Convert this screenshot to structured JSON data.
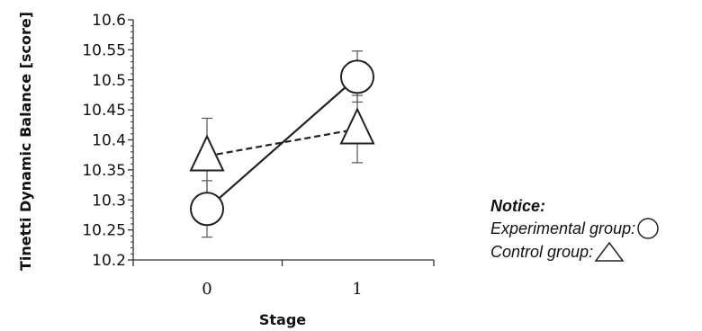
{
  "chart_data": {
    "type": "line",
    "title": "",
    "xlabel": "Stage",
    "ylabel": "Tinetti Dynamic Balance [score]",
    "categories": [
      "0",
      "1"
    ],
    "ylim": [
      10.2,
      10.6
    ],
    "yticks": [
      "10.6",
      "10.55",
      "10.5",
      "10.45",
      "10.4",
      "10.35",
      "10.3",
      "10.25",
      "10.2"
    ],
    "ytick_values": [
      10.6,
      10.55,
      10.5,
      10.45,
      10.4,
      10.35,
      10.3,
      10.25,
      10.2
    ],
    "grid": false,
    "legend_placement": "right",
    "series": [
      {
        "name": "Experimental group",
        "marker": "circle",
        "line_style": "solid",
        "values": [
          10.285,
          10.505
        ],
        "error_low": [
          10.238,
          10.463
        ],
        "error_high": [
          10.332,
          10.548
        ]
      },
      {
        "name": "Control group",
        "marker": "triangle",
        "line_style": "dashed",
        "values": [
          10.373,
          10.418
        ],
        "error_low": [
          10.31,
          10.362
        ],
        "error_high": [
          10.436,
          10.474
        ]
      }
    ]
  },
  "legend": {
    "title": "Notice:",
    "items": [
      "Experimental group:",
      "Control group:"
    ]
  }
}
